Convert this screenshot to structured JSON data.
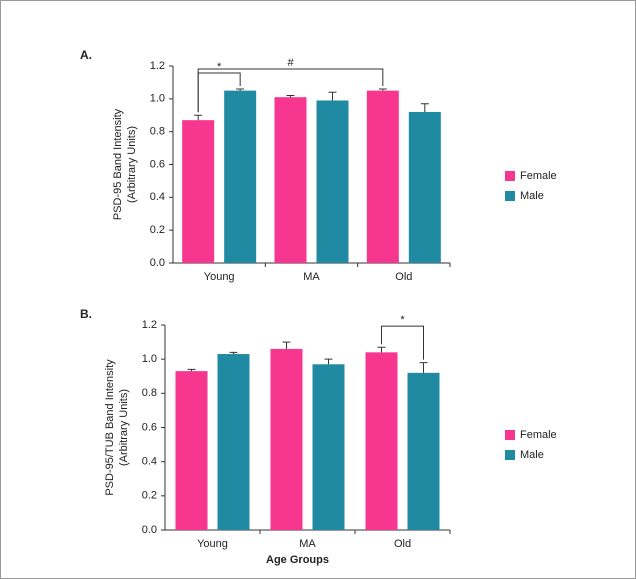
{
  "chart_data": [
    {
      "type": "bar",
      "label": "A.",
      "ylabel": [
        "PSD-95 Band Intensity",
        "(Arbitrary Units)"
      ],
      "categories": [
        "Young",
        "MA",
        "Old"
      ],
      "series": [
        {
          "name": "Female",
          "color": "#f7368f",
          "values": [
            0.87,
            1.01,
            1.05
          ],
          "errors": [
            0.03,
            0.01,
            0.01
          ]
        },
        {
          "name": "Male",
          "color": "#1f8aa2",
          "values": [
            1.05,
            0.99,
            0.92
          ],
          "errors": [
            0.01,
            0.05,
            0.05
          ]
        }
      ],
      "ylim": [
        0,
        1.2
      ],
      "yticks": [
        {
          "value": 0,
          "label": "0.0"
        },
        {
          "value": 0.2,
          "label": "0.2"
        },
        {
          "value": 0.4,
          "label": "0.4"
        },
        {
          "value": 0.6,
          "label": "0.6"
        },
        {
          "value": 0.8,
          "label": "0.8"
        },
        {
          "value": 1,
          "label": "1.0"
        },
        {
          "value": 1.2,
          "label": "1.2"
        }
      ],
      "annotations": [
        {
          "text": "*",
          "bars": [
            [
              0,
              0
            ],
            [
              1,
              0
            ]
          ]
        },
        {
          "text": "#",
          "bars": [
            [
              0,
              0
            ],
            [
              0,
              2
            ]
          ]
        }
      ],
      "legend": "right"
    },
    {
      "type": "bar",
      "label": "B.",
      "ylabel": [
        "PSD-95/TUB Band Intensity",
        "(Arbitrary Units)"
      ],
      "xlabel": "Age Groups",
      "categories": [
        "Young",
        "MA",
        "Old"
      ],
      "series": [
        {
          "name": "Female",
          "color": "#f7368f",
          "values": [
            0.93,
            1.06,
            1.04
          ],
          "errors": [
            0.01,
            0.04,
            0.03
          ]
        },
        {
          "name": "Male",
          "color": "#1f8aa2",
          "values": [
            1.03,
            0.97,
            0.92
          ],
          "errors": [
            0.01,
            0.03,
            0.06
          ]
        }
      ],
      "ylim": [
        0,
        1.2
      ],
      "yticks": [
        {
          "value": 0,
          "label": "0.0"
        },
        {
          "value": 0.2,
          "label": "0.2"
        },
        {
          "value": 0.4,
          "label": "0.4"
        },
        {
          "value": 0.6,
          "label": "0.6"
        },
        {
          "value": 0.8,
          "label": "0.8"
        },
        {
          "value": 1,
          "label": "1.0"
        },
        {
          "value": 1.2,
          "label": "1.2"
        }
      ],
      "annotations": [
        {
          "text": "*",
          "bars": [
            [
              0,
              2
            ],
            [
              1,
              2
            ]
          ]
        }
      ],
      "legend": "right"
    }
  ]
}
